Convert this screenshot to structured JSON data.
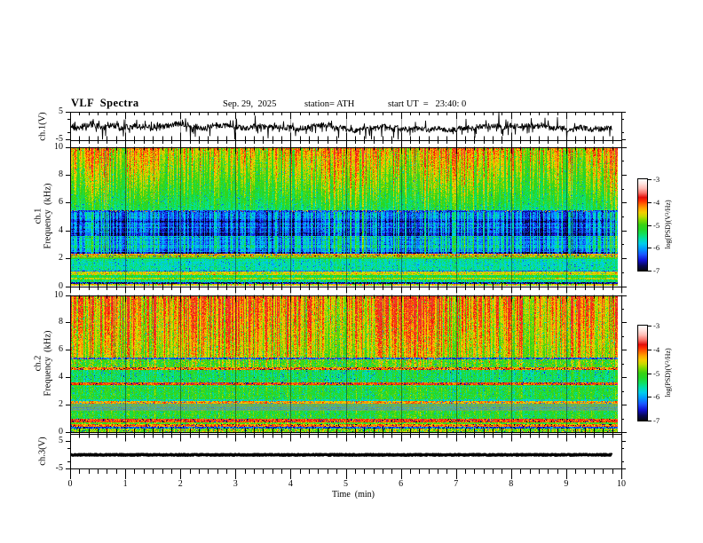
{
  "header": {
    "title": "VLF  Spectra",
    "date": "Sep. 29,  2025",
    "station": "station= ATH",
    "start_ut": "start UT  =   23:40: 0"
  },
  "x_axis": {
    "label": "Time  (min)",
    "ticks": [
      "0",
      "1",
      "2",
      "3",
      "4",
      "5",
      "6",
      "7",
      "8",
      "9",
      "10"
    ]
  },
  "colorbar": {
    "label": "log(PSD)(V²/Hz)",
    "ticks": [
      "-3",
      "-4",
      "-5",
      "-6",
      "-7"
    ],
    "range": [
      -7,
      -3
    ]
  },
  "panels": {
    "ch1_wave": {
      "ylabel": "ch.1(V)",
      "yticks": [
        "5",
        "-5"
      ],
      "yvals": [
        5,
        -5
      ]
    },
    "ch1_spec": {
      "ylabel_line1": "ch.1",
      "ylabel_line2": "Frequency  (kHz)",
      "yticks": [
        "10",
        "8",
        "6",
        "4",
        "2",
        "0"
      ],
      "yvals": [
        10,
        8,
        6,
        4,
        2,
        0
      ]
    },
    "ch2_spec": {
      "ylabel_line1": "ch.2",
      "ylabel_line2": "Frequency  (kHz)",
      "yticks": [
        "10",
        "8",
        "6",
        "4",
        "2",
        "0"
      ],
      "yvals": [
        10,
        8,
        6,
        4,
        2,
        0
      ]
    },
    "ch3_wave": {
      "ylabel": "ch.3(V)",
      "yticks": [
        "5",
        "-5"
      ],
      "yvals": [
        5,
        -5
      ]
    }
  },
  "chart_data": [
    {
      "id": "ch1_waveform",
      "type": "line",
      "channel": "ch.1(V)",
      "xlabel": "Time (min)",
      "ylabel": "ch.1(V)",
      "x_range_min": [
        0,
        10
      ],
      "y_range_V": [
        -5,
        5
      ],
      "data_end_min": 9.83,
      "baseline_V": -0.55,
      "noise_sigma_V": 0.8,
      "wander_sigma_V": 1.35,
      "down_spike_rate": 0.09,
      "up_spike_rate": 0.06,
      "max_abs_V": 5,
      "seed": 1337
    },
    {
      "id": "ch1_spectrogram",
      "type": "heatmap",
      "channel": "ch.1",
      "xlabel": "Time (min)",
      "ylabel": "ch.1 Frequency (kHz)",
      "colorbar_label": "log(PSD)(V²/Hz)",
      "x_range_min": [
        0,
        10
      ],
      "y_range_kHz": [
        0,
        10
      ],
      "value_range_logPSD": [
        -7,
        -3
      ],
      "data_end_min": 9.92,
      "seed": 4242,
      "clamp_max": -3.7,
      "bands": [
        {
          "f": [
            5.45,
            10.0
          ],
          "base": -5.5,
          "grad": 0.12,
          "gradRef": 5.45,
          "colMode": "streak",
          "amp": 1.5,
          "hotW": [
            0.55,
            0.2,
            0.25
          ],
          "gain": 1.55,
          "cut": 0.35,
          "pen": [
            0.5,
            0.9,
            0.35
          ],
          "noise": 0.2,
          "speck": [
            0.025,
            -0.85
          ],
          "redcap": [
            9.35,
            0.12
          ]
        },
        {
          "f": [
            5.3,
            5.45
          ],
          "base": -6.35,
          "colAmp": 0.3,
          "colMode": "fine",
          "noise": 0.4,
          "dots": [
            0.12,
            1.9
          ]
        },
        {
          "f": [
            2.33,
            5.3
          ],
          "base": -6.18,
          "colAmp": 0.95,
          "colMode": "fine",
          "noise": 0.22,
          "rowStripe": 0.22,
          "speck": [
            0.04,
            -0.5
          ],
          "hotAdd": 0.55,
          "rows": [
            [
              4.9,
              5.3,
              0.12
            ],
            [
              4.55,
              4.74,
              -0.28
            ],
            [
              3.85,
              4.55,
              -0.03
            ],
            [
              3.62,
              3.85,
              -0.25
            ],
            [
              2.7,
              3.62,
              0.3
            ],
            [
              2.45,
              2.7,
              0.12
            ],
            [
              2.33,
              2.45,
              -0.35
            ]
          ]
        },
        {
          "f": [
            2.28,
            2.33
          ],
          "base": -5.05,
          "colAmp": 0.3,
          "colMode": "fine",
          "noise": 0.3
        },
        {
          "f": [
            2.02,
            2.28
          ],
          "base": -4.35,
          "colAmp": 0.3,
          "colMode": "fine",
          "noise": 0.3,
          "speck": [
            0.08,
            -1.8
          ],
          "dots": [
            0.12,
            0.45
          ],
          "rows": [
            [
              2.14,
              2.2,
              -0.7
            ]
          ]
        },
        {
          "f": [
            1.95,
            2.02
          ],
          "base": -5.15,
          "colAmp": 0.3,
          "colMode": "fine",
          "noise": 0.3
        },
        {
          "f": [
            1.1,
            1.95
          ],
          "base": -5.6,
          "colAmp": 0.35,
          "colMode": "fine",
          "noise": 0.22,
          "rowStripe": 0.08,
          "speck": [
            0.05,
            -0.6
          ]
        },
        {
          "f": [
            1.0,
            1.1
          ],
          "base": -6.15,
          "colAmp": 0.3,
          "colMode": "fine",
          "noise": 0.35
        },
        {
          "f": [
            0.8,
            1.0
          ],
          "base": -4.6,
          "colAmp": 0.28,
          "colMode": "fine",
          "noise": 0.28,
          "speck": [
            0.05,
            -1.2
          ],
          "dots": [
            0.06,
            0.4
          ]
        },
        {
          "f": [
            0.56,
            0.8
          ],
          "base": -5.3,
          "colAmp": 0.4,
          "colMode": "fine",
          "noise": 0.3
        },
        {
          "f": [
            0.45,
            0.56
          ],
          "base": -4.75,
          "colAmp": 0.28,
          "colMode": "fine",
          "noise": 0.28,
          "dots": [
            0.05,
            0.4
          ]
        },
        {
          "f": [
            0.28,
            0.45
          ],
          "base": -5.45,
          "colAmp": 0.4,
          "colMode": "fine",
          "noise": 0.3
        },
        {
          "f": [
            0.11,
            0.28
          ],
          "base": -6.6,
          "colAmp": 0.35,
          "colMode": "fine",
          "noise": 0.4,
          "dots": [
            0.04,
            1.5
          ]
        },
        {
          "f": [
            0.0,
            0.11
          ],
          "base": -4.6,
          "colAmp": 0.4,
          "colMode": "fine",
          "noise": 0.4,
          "dots": [
            0.08,
            0.5
          ]
        }
      ]
    },
    {
      "id": "ch2_spectrogram",
      "type": "heatmap",
      "channel": "ch.2",
      "xlabel": "Time (min)",
      "ylabel": "ch.2 Frequency (kHz)",
      "colorbar_label": "log(PSD)(V²/Hz)",
      "x_range_min": [
        0,
        10
      ],
      "y_range_kHz": [
        0,
        10
      ],
      "value_range_logPSD": [
        -7,
        -3
      ],
      "data_end_min": 9.92,
      "seed": 9001,
      "clamp_max": -3.72,
      "bands": [
        {
          "f": [
            5.45,
            10.0
          ],
          "base": -5.04,
          "grad": 0.05,
          "gradRef": 5.45,
          "colMode": "streak",
          "amp": 1.55,
          "hotW": [
            0.62,
            0.15,
            0.23
          ],
          "gain": 1.8,
          "cut": 0.4,
          "pen": [
            1.4,
            0.5,
            0.5
          ],
          "noise": 0.22,
          "speck": [
            0.045,
            -0.9
          ],
          "redcap": [
            11,
            0
          ]
        },
        {
          "f": [
            5.32,
            5.45
          ],
          "base": -6.25,
          "colAmp": 0.3,
          "colMode": "fine",
          "noise": 0.4,
          "dots": [
            0.18,
            2.1
          ]
        },
        {
          "f": [
            4.76,
            5.32
          ],
          "base": -5.02,
          "colAmp": 0.5,
          "colMode": "fine",
          "noise": 0.3,
          "speck": [
            0.05,
            -0.9
          ],
          "hotAdd": 0.55,
          "dots": [
            0.05,
            0.75
          ]
        },
        {
          "f": [
            4.55,
            4.76
          ],
          "base": -4.15,
          "colAmp": 0.3,
          "colMode": "fine",
          "noise": 0.35,
          "speck": [
            0.15,
            -2.6
          ]
        },
        {
          "f": [
            3.64,
            4.55
          ],
          "base": -5.35,
          "colAmp": 0.5,
          "colMode": "fine",
          "noise": 0.28,
          "speck": [
            0.05,
            -0.8
          ]
        },
        {
          "f": [
            3.47,
            3.64
          ],
          "base": -4.0,
          "colAmp": 0.25,
          "colMode": "fine",
          "noise": 0.3,
          "speck": [
            0.16,
            -2.6
          ]
        },
        {
          "f": [
            3.3,
            3.47
          ],
          "base": -5.0,
          "colAmp": 0.3,
          "colMode": "fine",
          "noise": 0.3,
          "rows": [
            [
              3.3,
              3.36,
              -0.5
            ]
          ]
        },
        {
          "f": [
            2.42,
            3.3
          ],
          "base": -5.18,
          "colAmp": 0.5,
          "colMode": "fine",
          "noise": 0.28,
          "speck": [
            0.05,
            -0.7
          ]
        },
        {
          "f": [
            2.3,
            2.42
          ],
          "base": -5.6,
          "colAmp": 0.3,
          "colMode": "fine",
          "noise": 0.35
        },
        {
          "f": [
            2.06,
            2.3
          ],
          "base": -4.28,
          "colAmp": 0.3,
          "colMode": "fine",
          "noise": 0.33,
          "speck": [
            0.1,
            -1.8
          ]
        },
        {
          "f": [
            1.55,
            2.06
          ],
          "base": -5.25,
          "colAmp": 0.3,
          "colMode": "fine",
          "noise": 0.5,
          "grayMix": [
            0.55,
            138,
            143,
            122
          ],
          "rowStripe": 0.12,
          "rows": [
            [
              1.6,
              1.68,
              -0.55
            ],
            [
              1.74,
              1.83,
              -0.55
            ]
          ]
        },
        {
          "f": [
            0.95,
            1.55
          ],
          "base": -5.15,
          "colAmp": 0.45,
          "colMode": "fine",
          "noise": 0.3,
          "speck": [
            0.04,
            -0.8
          ]
        },
        {
          "f": [
            0.73,
            0.95
          ],
          "base": -3.95,
          "colAmp": 0.25,
          "colMode": "fine",
          "noise": 0.33,
          "speck": [
            0.12,
            -2.8
          ]
        },
        {
          "f": [
            0.6,
            0.73
          ],
          "base": -5.0,
          "colAmp": 0.4,
          "colMode": "fine",
          "noise": 0.33,
          "dots": [
            0.05,
            0.55
          ]
        },
        {
          "f": [
            0.42,
            0.6
          ],
          "base": -4.15,
          "colAmp": 0.3,
          "colMode": "fine",
          "noise": 0.35,
          "speck": [
            0.1,
            -2.6
          ]
        },
        {
          "f": [
            0.26,
            0.42
          ],
          "base": -6.35,
          "colAmp": 0.35,
          "colMode": "fine",
          "noise": 0.45,
          "dots": [
            0.05,
            1.7
          ]
        },
        {
          "f": [
            0.0,
            0.26
          ],
          "base": -4.85,
          "colAmp": 0.45,
          "colMode": "fine",
          "noise": 0.45,
          "dots": [
            0.07,
            0.7
          ],
          "speck": [
            0.05,
            -1.5
          ]
        }
      ]
    },
    {
      "id": "ch3_waveform",
      "type": "line",
      "channel": "ch.3(V)",
      "xlabel": "Time (min)",
      "ylabel": "ch.3(V)",
      "x_range_min": [
        0,
        10
      ],
      "y_range_V": [
        -5,
        5
      ],
      "data_end_min": 9.83,
      "baseline_V": 0.0,
      "noise_sigma_V": 0.18,
      "wander_sigma_V": 0.0,
      "down_spike_rate": 0,
      "up_spike_rate": 0,
      "max_abs_V": 5,
      "thick": true,
      "seed": 77
    }
  ],
  "colormap_stops": [
    [
      -7.0,
      5,
      5,
      16
    ],
    [
      -6.78,
      8,
      8,
      90
    ],
    [
      -6.55,
      16,
      16,
      210
    ],
    [
      -6.3,
      25,
      85,
      255
    ],
    [
      -6.05,
      0,
      155,
      255
    ],
    [
      -5.82,
      0,
      205,
      235
    ],
    [
      -5.62,
      0,
      222,
      175
    ],
    [
      -5.42,
      15,
      225,
      100
    ],
    [
      -5.2,
      35,
      215,
      40
    ],
    [
      -5.0,
      55,
      210,
      20
    ],
    [
      -4.8,
      125,
      218,
      0
    ],
    [
      -4.62,
      200,
      218,
      0
    ],
    [
      -4.45,
      245,
      205,
      0
    ],
    [
      -4.28,
      255,
      165,
      0
    ],
    [
      -4.1,
      255,
      105,
      0
    ],
    [
      -3.94,
      255,
      45,
      0
    ],
    [
      -3.8,
      228,
      15,
      10
    ],
    [
      -3.6,
      250,
      115,
      105
    ],
    [
      -3.4,
      255,
      188,
      181
    ],
    [
      -3.18,
      255,
      232,
      228
    ],
    [
      -3.0,
      255,
      253,
      252
    ]
  ]
}
